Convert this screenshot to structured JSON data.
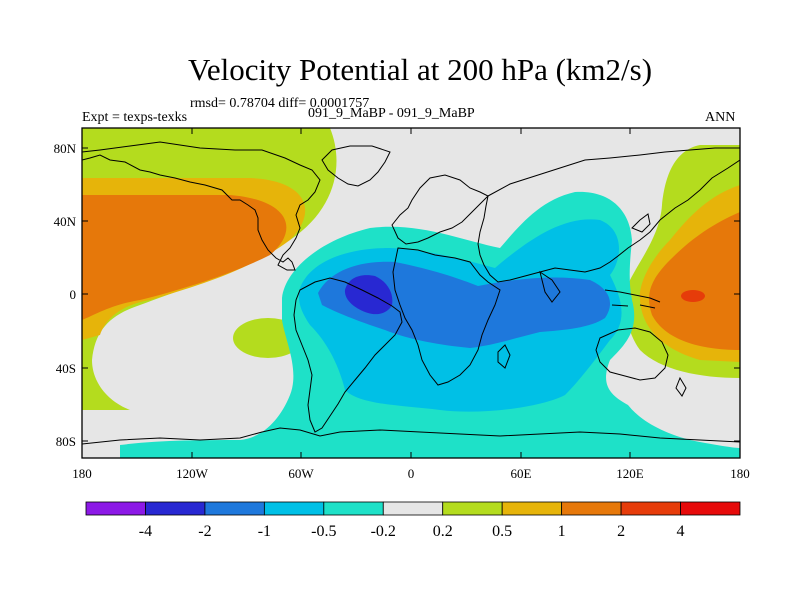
{
  "title": "Velocity Potential at 200 hPa (km2/s)",
  "stats_text": "rmsd= 0.78704 diff= 0.0001757",
  "left_label": "Expt = texps-texks",
  "center_label": "091_9_MaBP - 091_9_MaBP",
  "right_label": "ANN",
  "axes": {
    "lat_ticks": [
      "80N",
      "40N",
      "0",
      "40S",
      "80S"
    ],
    "lon_ticks": [
      "180",
      "120W",
      "60W",
      "0",
      "60E",
      "120E",
      "180"
    ]
  },
  "colorbar": {
    "colors": [
      "#8c19e6",
      "#2828d2",
      "#1e78dc",
      "#00c0e6",
      "#1ee1c8",
      "#e6e6e6",
      "#b4dc1e",
      "#e6b40a",
      "#e6780a",
      "#e63c0a",
      "#e60a0a"
    ],
    "labels": [
      "-4",
      "-2",
      "-1",
      "-0.5",
      "-0.2",
      "0.2",
      "0.5",
      "1",
      "2",
      "4"
    ]
  },
  "colors": {
    "neutral": "#e6e6e6",
    "pos_02": "#b4dc1e",
    "pos_05": "#e6b40a",
    "pos_1": "#e6780a",
    "pos_2": "#e63c0a",
    "neg_02": "#1ee1c8",
    "neg_05": "#00c0e6",
    "neg_1": "#1e78dc",
    "neg_2": "#2828d2"
  }
}
